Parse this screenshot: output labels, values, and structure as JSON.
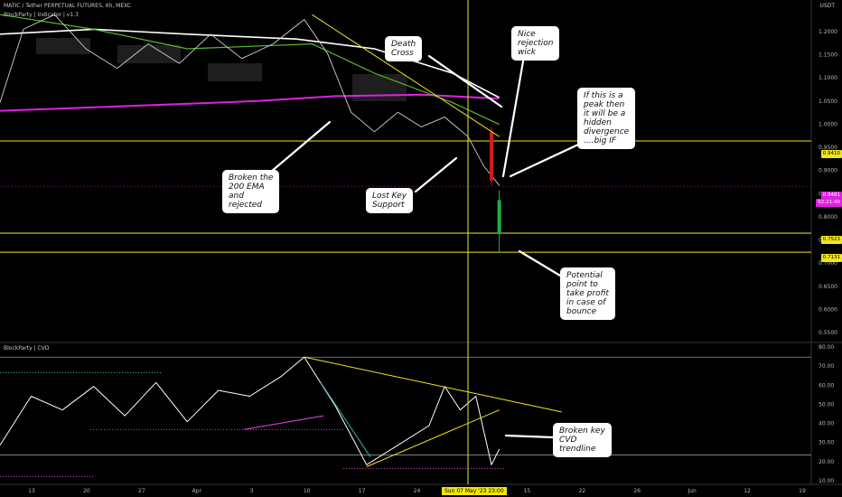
{
  "header": {
    "symbol_line": "MATIC / Tether PERPETUAL FUTURES, 6h, MEXC",
    "indicator_line": "BlockParty | Indicator | v1.3",
    "currency": "USDT",
    "cvd_title": "BlockParty | CVD"
  },
  "colors": {
    "white_ema": "#ffffff",
    "ema200": "#e020e0",
    "green_ema": "#5ab82e",
    "trendline": "#f0e620",
    "support": "#f0e620",
    "cvd_line": "#ffffff",
    "cvd_teal": "#2bb5a8",
    "cvd_pink": "#d040d0",
    "bull_bar": "#1db33a",
    "bear_bar": "#d11a1a"
  },
  "price_axis": {
    "labels": [
      "1.2000",
      "1.1500",
      "1.1000",
      "1.0500",
      "1.0000",
      "0.9500",
      "0.9000",
      "0.8500",
      "0.8000",
      "0.7500",
      "0.7000",
      "0.6500",
      "0.6000",
      "0.5500"
    ],
    "tags": [
      {
        "text": "0.9410",
        "style": "yellow"
      },
      {
        "text": "0.8481",
        "style": "magenta"
      },
      {
        "text": "02:21:49",
        "style": "magenta"
      },
      {
        "text": "0.7523",
        "style": "yellow"
      },
      {
        "text": "0.7131",
        "style": "yellow"
      }
    ]
  },
  "cvd_axis": {
    "labels": [
      "80.00",
      "70.00",
      "60.00",
      "50.00",
      "40.00",
      "30.00",
      "20.00",
      "10.00"
    ]
  },
  "time_axis": {
    "labels": [
      "13",
      "20",
      "27",
      "Apr",
      "3",
      "10",
      "17",
      "24",
      "May",
      "15",
      "22",
      "26",
      "Jun",
      "12",
      "19"
    ],
    "cursor_label": "Sun 07 May '23  23:00"
  },
  "annotations": [
    {
      "id": "death-cross",
      "text": "Death\nCross"
    },
    {
      "id": "nice-rejection",
      "text": "Nice\nrejection\nwick"
    },
    {
      "id": "peak-divergence",
      "text": "If this is a\npeak then\nit will be a\nhidden\ndivergence\n....big IF"
    },
    {
      "id": "broken-200ema",
      "text": "Broken the\n200 EMA\nand\nrejected"
    },
    {
      "id": "lost-key-support",
      "text": "Lost Key\nSupport"
    },
    {
      "id": "potential-point",
      "text": "Potential\npoint to\ntake profit\nin case of\nbounce"
    },
    {
      "id": "broken-cvd",
      "text": "Broken key\nCVD\ntrendline"
    }
  ],
  "chart_data": [
    {
      "type": "line",
      "panel": "price",
      "ylim": [
        0.53,
        1.23
      ],
      "x_range": [
        "2023-03-08",
        "2023-06-20"
      ],
      "support_levels": [
        0.941,
        0.7523,
        0.7131
      ],
      "current_price": 0.8481,
      "series": [
        {
          "name": "",
          "role": "white_ema",
          "x": [
            "2023-03-08",
            "2023-03-20",
            "2023-04-01",
            "2023-04-15",
            "2023-04-25",
            "2023-05-05",
            "2023-05-11"
          ],
          "values": [
            1.16,
            1.17,
            1.16,
            1.15,
            1.13,
            1.08,
            1.03
          ]
        },
        {
          "name": "",
          "role": "ema200",
          "x": [
            "2023-03-08",
            "2023-03-25",
            "2023-04-10",
            "2023-04-20",
            "2023-05-01",
            "2023-05-11"
          ],
          "values": [
            1.003,
            1.013,
            1.023,
            1.033,
            1.036,
            1.028
          ]
        },
        {
          "name": "",
          "role": "green_ema",
          "x": [
            "2023-03-08",
            "2023-03-20",
            "2023-04-01",
            "2023-04-17",
            "2023-04-25",
            "2023-05-05",
            "2023-05-11"
          ],
          "values": [
            1.2,
            1.17,
            1.13,
            1.14,
            1.08,
            1.02,
            0.975
          ]
        },
        {
          "name": "",
          "role": "price",
          "x": [
            "2023-03-08",
            "2023-03-11",
            "2023-03-15",
            "2023-03-19",
            "2023-03-23",
            "2023-03-27",
            "2023-03-31",
            "2023-04-04",
            "2023-04-08",
            "2023-04-12",
            "2023-04-16",
            "2023-04-19",
            "2023-04-22",
            "2023-04-25",
            "2023-04-28",
            "2023-05-01",
            "2023-05-04",
            "2023-05-07",
            "2023-05-09",
            "2023-05-10",
            "2023-05-11"
          ],
          "values": [
            1.02,
            1.17,
            1.2,
            1.13,
            1.09,
            1.14,
            1.1,
            1.16,
            1.11,
            1.14,
            1.19,
            1.12,
            1.0,
            0.96,
            1.0,
            0.97,
            0.99,
            0.95,
            0.89,
            0.87,
            0.85
          ]
        }
      ],
      "candles_marked": [
        {
          "x": "2023-05-10",
          "open": 0.96,
          "high": 0.97,
          "low": 0.85,
          "close": 0.86,
          "color": "bear"
        },
        {
          "x": "2023-05-11",
          "open": 0.82,
          "high": 0.84,
          "low": 0.713,
          "close": 0.75,
          "color": "bull"
        }
      ],
      "trendlines": [
        {
          "x": [
            "2023-04-17",
            "2023-05-11"
          ],
          "values": [
            1.2,
            0.95
          ]
        }
      ]
    },
    {
      "type": "line",
      "panel": "cvd",
      "title": "BlockParty | CVD",
      "ylim": [
        10,
        82
      ],
      "levels": [
        75,
        25
      ],
      "series": [
        {
          "name": "",
          "role": "cvd_line",
          "x": [
            "2023-03-08",
            "2023-03-12",
            "2023-03-16",
            "2023-03-20",
            "2023-03-24",
            "2023-03-28",
            "2023-04-01",
            "2023-04-05",
            "2023-04-09",
            "2023-04-13",
            "2023-04-16",
            "2023-04-20",
            "2023-04-24",
            "2023-04-28",
            "2023-05-02",
            "2023-05-04",
            "2023-05-06",
            "2023-05-08",
            "2023-05-10",
            "2023-05-11"
          ],
          "values": [
            30,
            55,
            48,
            60,
            45,
            62,
            42,
            58,
            55,
            65,
            75,
            50,
            20,
            30,
            40,
            60,
            48,
            55,
            20,
            28
          ]
        }
      ],
      "trendlines": [
        {
          "x": [
            "2023-04-16",
            "2023-05-19"
          ],
          "values": [
            75,
            47
          ]
        },
        {
          "x": [
            "2023-04-24",
            "2023-05-11"
          ],
          "values": [
            19,
            48
          ]
        }
      ]
    }
  ]
}
